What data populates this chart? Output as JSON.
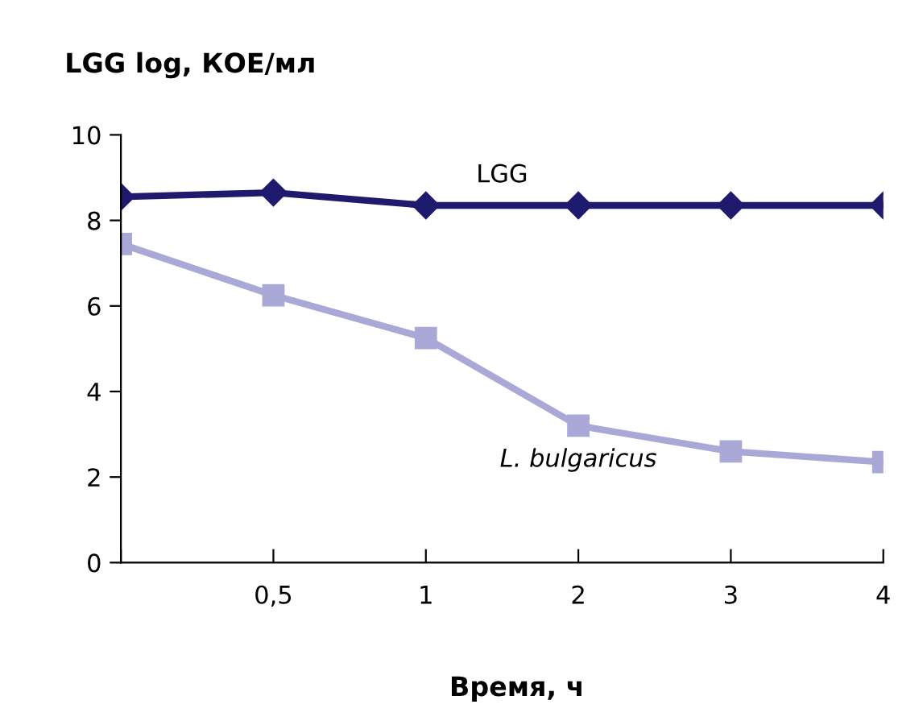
{
  "chart_data": {
    "type": "line",
    "ylabel": "LGG log, КОЕ/мл",
    "xlabel": "Время, ч",
    "categories": [
      null,
      "0,5",
      "1",
      "2",
      "3",
      "4"
    ],
    "series": [
      {
        "name": "LGG",
        "color": "#1f1a6e",
        "marker": "diamond",
        "values": [
          8.55,
          8.65,
          8.35,
          8.35,
          8.35,
          8.35
        ]
      },
      {
        "name": "L. bulgaricus",
        "color": "#a9a8d6",
        "marker": "square",
        "values": [
          7.45,
          6.25,
          5.25,
          3.2,
          2.6,
          2.35
        ]
      }
    ],
    "ylim": [
      0,
      10
    ],
    "yticks": [
      0,
      2,
      4,
      6,
      8,
      10
    ],
    "grid": false,
    "legend": false
  }
}
